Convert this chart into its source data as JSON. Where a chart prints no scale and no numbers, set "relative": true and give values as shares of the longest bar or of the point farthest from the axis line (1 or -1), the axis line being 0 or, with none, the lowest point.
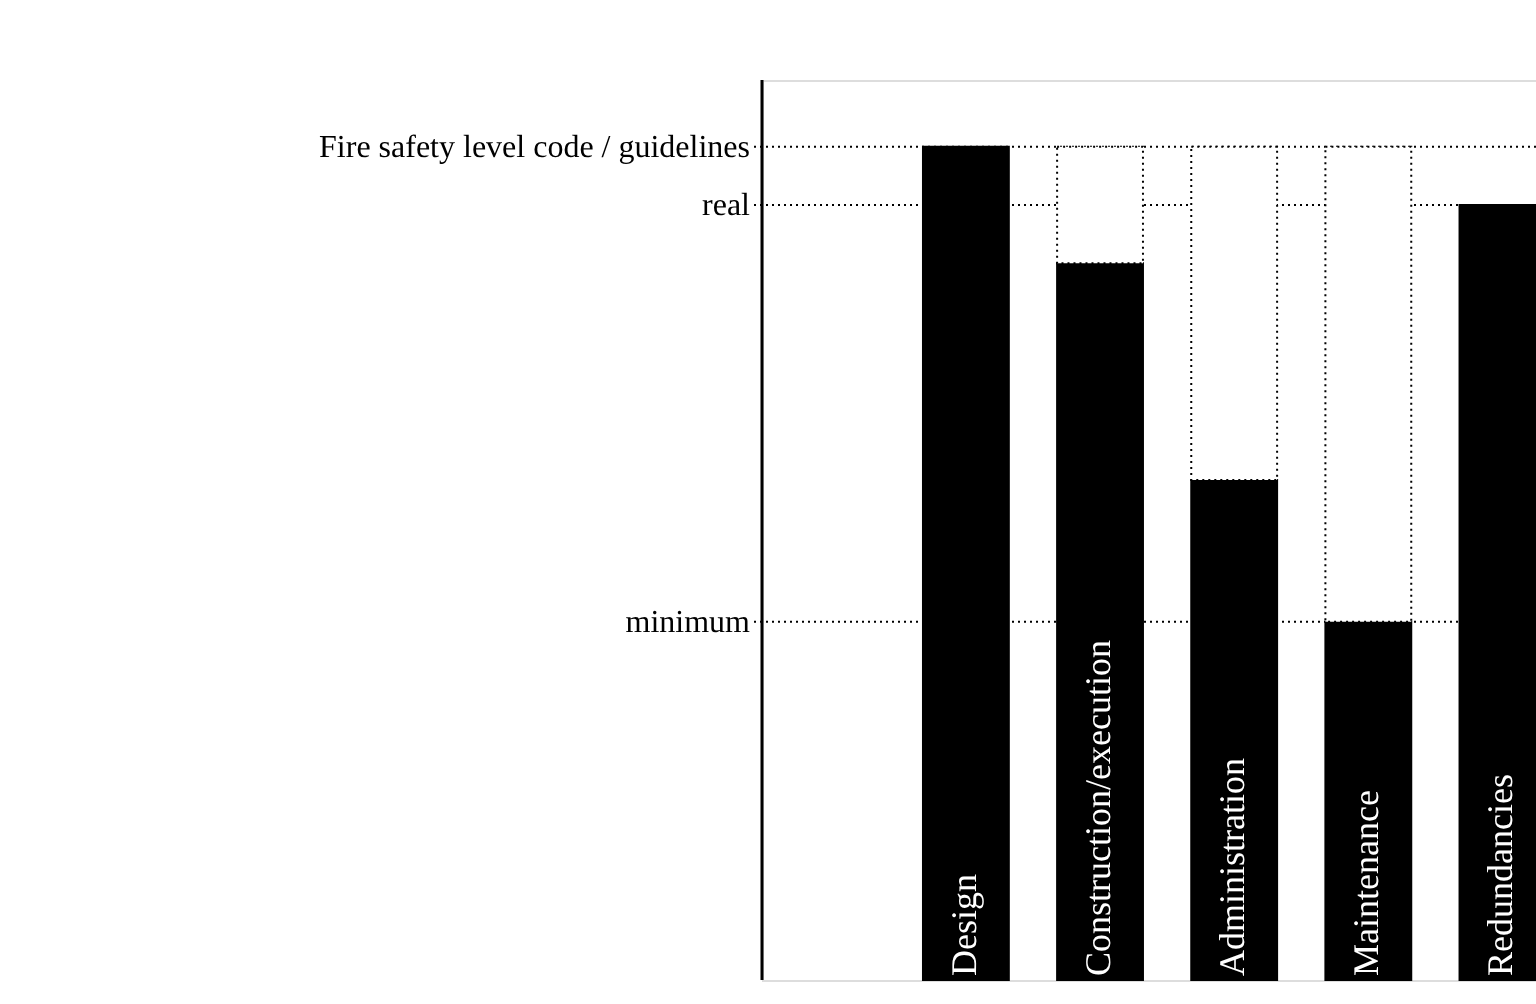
{
  "chart_data": {
    "type": "bar",
    "relative": true,
    "stacked": true,
    "categories": [
      "Design",
      "Construction/execution",
      "Administration",
      "Maintenance",
      "Redundancies"
    ],
    "series": [
      {
        "color": "#000000",
        "values": [
          1,
          0.86,
          0.6,
          0.43,
          0.93
        ]
      },
      {
        "color": "#ffffff",
        "line_style": "dotted",
        "values": [
          null,
          0.14,
          0.4,
          0.57,
          null
        ]
      }
    ],
    "ref_lines": [
      {
        "axis": "y",
        "value": 1,
        "label": "Fire safety level code / guidelines",
        "line_style": "dotted"
      },
      {
        "axis": "y",
        "value": 0.93,
        "label": "real",
        "line_style": "dotted"
      },
      {
        "axis": "y",
        "value": 0.43,
        "label": "minimum",
        "line_style": "dotted"
      }
    ]
  }
}
